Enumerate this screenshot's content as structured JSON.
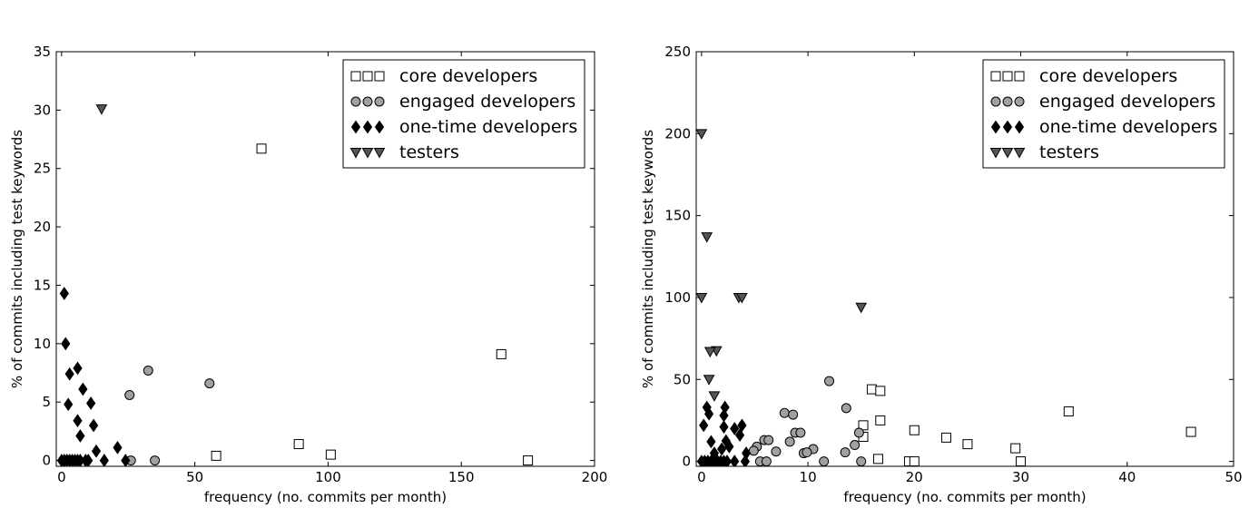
{
  "chart_data": [
    {
      "type": "scatter",
      "xlabel": "frequency (no. commits per month)",
      "ylabel": "% of commits including test keywords",
      "xlim": [
        -2,
        200
      ],
      "ylim": [
        -0.5,
        35
      ],
      "xticks": [
        0,
        50,
        100,
        150,
        200
      ],
      "yticks": [
        0,
        5,
        10,
        15,
        20,
        25,
        30,
        35
      ],
      "legend_position": "top-right",
      "series": [
        {
          "name": "core developers",
          "marker": "square",
          "color": "#ffffff",
          "points": [
            [
              75,
              26.7
            ],
            [
              58,
              0.4
            ],
            [
              89,
              1.4
            ],
            [
              101,
              0.5
            ],
            [
              165,
              9.1
            ],
            [
              175,
              0
            ]
          ]
        },
        {
          "name": "engaged developers",
          "marker": "circle",
          "color": "#a0a0a0",
          "points": [
            [
              32.5,
              7.7
            ],
            [
              25.5,
              5.6
            ],
            [
              55.5,
              6.6
            ],
            [
              26,
              0
            ],
            [
              35,
              0
            ]
          ]
        },
        {
          "name": "one-time developers",
          "marker": "diamond",
          "color": "#000000",
          "points": [
            [
              1,
              14.3
            ],
            [
              1.5,
              10
            ],
            [
              3,
              7.4
            ],
            [
              6,
              7.9
            ],
            [
              8,
              6.1
            ],
            [
              2.5,
              4.8
            ],
            [
              11,
              4.9
            ],
            [
              6,
              3.4
            ],
            [
              12,
              3.0
            ],
            [
              7,
              2.1
            ],
            [
              21,
              1.1
            ],
            [
              13,
              0.8
            ],
            [
              0,
              0
            ],
            [
              1,
              0
            ],
            [
              2,
              0
            ],
            [
              3,
              0
            ],
            [
              4,
              0
            ],
            [
              5,
              0
            ],
            [
              6,
              0
            ],
            [
              7,
              0
            ],
            [
              9,
              0
            ],
            [
              10,
              0
            ],
            [
              16,
              0
            ],
            [
              24,
              0
            ]
          ]
        },
        {
          "name": "testers",
          "marker": "triangle-down",
          "color": "#555555",
          "points": [
            [
              15,
              30.1
            ]
          ]
        }
      ]
    },
    {
      "type": "scatter",
      "xlabel": "frequency (no. commits per month)",
      "ylabel": "% of commits including test keywords",
      "xlim": [
        -0.5,
        50
      ],
      "ylim": [
        -3,
        250
      ],
      "xticks": [
        0,
        10,
        20,
        30,
        40,
        50
      ],
      "yticks": [
        0,
        50,
        100,
        150,
        200,
        250
      ],
      "legend_position": "top-right",
      "series": [
        {
          "name": "core developers",
          "marker": "square",
          "color": "#ffffff",
          "points": [
            [
              16,
              44
            ],
            [
              16.8,
              43
            ],
            [
              16.8,
              25
            ],
            [
              15.2,
              22
            ],
            [
              15.2,
              15
            ],
            [
              20,
              19
            ],
            [
              23,
              14.5
            ],
            [
              25,
              10.5
            ],
            [
              29.5,
              8
            ],
            [
              34.5,
              30.5
            ],
            [
              46,
              18
            ],
            [
              16.6,
              1.5
            ],
            [
              19.5,
              0
            ],
            [
              20,
              0
            ],
            [
              30,
              0
            ]
          ]
        },
        {
          "name": "engaged developers",
          "marker": "circle",
          "color": "#a0a0a0",
          "points": [
            [
              12,
              49
            ],
            [
              13.6,
              32.5
            ],
            [
              7.8,
              29.5
            ],
            [
              8.6,
              28.5
            ],
            [
              8.8,
              17.5
            ],
            [
              9.3,
              17.5
            ],
            [
              14.8,
              17.5
            ],
            [
              5.9,
              13
            ],
            [
              6.3,
              13
            ],
            [
              8.3,
              12
            ],
            [
              14.4,
              10
            ],
            [
              5.2,
              9
            ],
            [
              7,
              6
            ],
            [
              4.9,
              6.5
            ],
            [
              9.6,
              5
            ],
            [
              10.5,
              7.5
            ],
            [
              13.5,
              5.5
            ],
            [
              9.9,
              5.5
            ],
            [
              5.5,
              0
            ],
            [
              6.1,
              0
            ],
            [
              11.5,
              0
            ],
            [
              15,
              0
            ]
          ]
        },
        {
          "name": "one-time developers",
          "marker": "diamond",
          "color": "#000000",
          "points": [
            [
              0.5,
              33
            ],
            [
              0.7,
              29
            ],
            [
              2.1,
              28
            ],
            [
              2.2,
              33
            ],
            [
              0.2,
              22
            ],
            [
              2.1,
              21
            ],
            [
              3.1,
              20
            ],
            [
              3.8,
              22
            ],
            [
              3.6,
              16
            ],
            [
              2.3,
              12.5
            ],
            [
              2.6,
              9
            ],
            [
              0.9,
              12
            ],
            [
              1.9,
              7.5
            ],
            [
              1.2,
              5
            ],
            [
              4.2,
              5
            ],
            [
              0,
              0
            ],
            [
              0.3,
              0
            ],
            [
              0.6,
              0
            ],
            [
              0.9,
              0
            ],
            [
              1.2,
              0
            ],
            [
              1.5,
              0
            ],
            [
              1.8,
              0
            ],
            [
              2.1,
              0
            ],
            [
              2.4,
              0
            ],
            [
              3.1,
              0
            ],
            [
              4.1,
              0
            ]
          ]
        },
        {
          "name": "testers",
          "marker": "triangle-down",
          "color": "#555555",
          "points": [
            [
              0,
              200
            ],
            [
              0.5,
              137
            ],
            [
              0,
              100
            ],
            [
              3.5,
              100
            ],
            [
              3.8,
              100
            ],
            [
              15,
              94
            ],
            [
              1.4,
              67.5
            ],
            [
              0.8,
              67
            ],
            [
              0.7,
              50
            ],
            [
              1.2,
              40
            ]
          ]
        }
      ]
    }
  ]
}
